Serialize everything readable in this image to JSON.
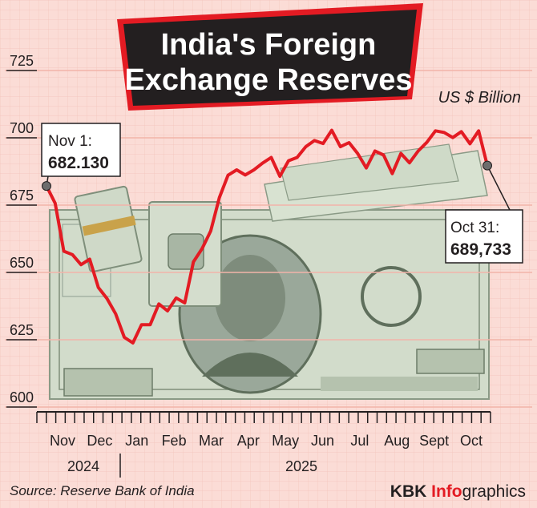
{
  "title_line1": "India's Foreign",
  "title_line2": "Exchange Reserves",
  "unit_label": "US $ Billion",
  "source": "Source: Reserve Bank of India",
  "credit_brand": "KBK",
  "credit_info": "Info",
  "credit_rest": "graphics",
  "colors": {
    "background": "#fbdcd6",
    "grid": "#f2b3a9",
    "line": "#e31b23",
    "title_bg": "#231f20",
    "accent": "#e31b23",
    "bill_green": "#c9d6bf",
    "bill_dark": "#5f6f5c"
  },
  "chart_data": {
    "type": "line",
    "title": "India's Foreign Exchange Reserves",
    "ylabel": "US $ Billion",
    "ylim": [
      600,
      725
    ],
    "yticks": [
      600,
      625,
      650,
      675,
      700,
      725
    ],
    "year_labels": [
      {
        "label": "2024",
        "anchor_index": 1
      },
      {
        "label": "2025",
        "anchor_index": 7
      }
    ],
    "month_labels": [
      "Nov",
      "Dec",
      "Jan",
      "Feb",
      "Mar",
      "Apr",
      "May",
      "Jun",
      "Jul",
      "Aug",
      "Sept",
      "Oct"
    ],
    "series": [
      {
        "values": [
          682.1,
          675.7,
          657.9,
          656.6,
          652.9,
          654.9,
          644.4,
          640.3,
          634.6,
          625.9,
          623.8,
          630.6,
          630.6,
          638.3,
          635.7,
          640.5,
          638.7,
          653.9,
          658.8,
          665.4,
          677.8,
          686.1,
          688.1,
          686.2,
          688.1,
          690.6,
          692.7,
          685.7,
          691.5,
          692.7,
          696.7,
          699.0,
          697.9,
          702.8,
          696.7,
          698.2,
          694.2,
          688.8,
          695.1,
          693.6,
          686.7,
          694.2,
          690.7,
          695.1,
          698.3,
          702.6,
          702.0,
          700.1,
          702.3,
          697.8,
          702.6,
          689.7
        ]
      }
    ],
    "annotations": [
      {
        "label": "Nov 1:",
        "value": "682.130"
      },
      {
        "label": "Oct 31:",
        "value": "689,733"
      }
    ]
  }
}
